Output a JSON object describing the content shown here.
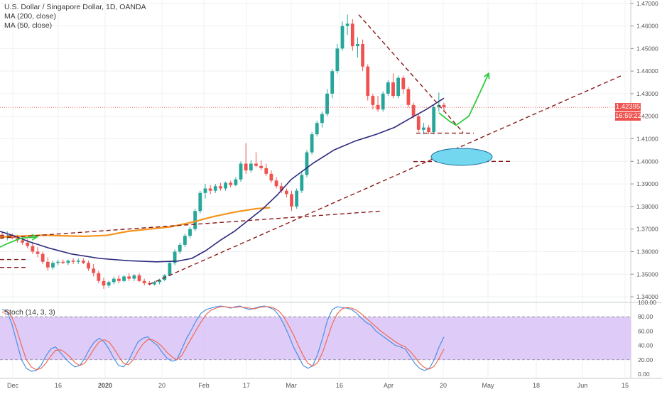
{
  "header": {
    "title": "U.S. Dollar / Singapore Dollar, 1D, OANDA",
    "ma200_label": "MA (200, close)",
    "ma50_label": "MA (50, close)",
    "stoch_label": "Stoch (14, 3, 3)"
  },
  "price_badges": {
    "last_price": "1.42395",
    "countdown": "16:59:22"
  },
  "colors": {
    "up": "#26a69a",
    "down": "#ef5350",
    "ma200": "#f7931a",
    "ma50": "#2c2a7d",
    "trend": "#8b1a1a",
    "stoch_k": "#4a90e2",
    "stoch_d": "#ef6b53",
    "stoch_band": "#d9c2f7",
    "arrow": "#2ecc40",
    "ellipse": "#74d7f0",
    "price_line": "#ef5350",
    "axis": "#555555"
  },
  "chart_data": [
    {
      "type": "candlestick",
      "title": "U.S. Dollar / Singapore Dollar, 1D, OANDA",
      "ylim": [
        1.3375,
        1.4715
      ],
      "y_ticks": [
        "1.34000",
        "1.35000",
        "1.36000",
        "1.37000",
        "1.38000",
        "1.39000",
        "1.40000",
        "1.41000",
        "1.42000",
        "1.43000",
        "1.44000",
        "1.45000",
        "1.46000",
        "1.47000"
      ],
      "x_ticks": [
        "Dec",
        "16",
        "2020",
        "20",
        "Feb",
        "17",
        "Mar",
        "16",
        "Apr",
        "20",
        "May",
        "18",
        "Jun",
        "15"
      ],
      "last_price": 1.42395,
      "candles": [
        [
          1.3675,
          1.3685,
          1.3655,
          1.3665
        ],
        [
          1.3665,
          1.369,
          1.365,
          1.367
        ],
        [
          1.367,
          1.368,
          1.3655,
          1.366
        ],
        [
          1.366,
          1.3675,
          1.364,
          1.365
        ],
        [
          1.365,
          1.3665,
          1.363,
          1.364
        ],
        [
          1.364,
          1.3655,
          1.3615,
          1.3625
        ],
        [
          1.3625,
          1.364,
          1.359,
          1.36
        ],
        [
          1.36,
          1.362,
          1.3575,
          1.359
        ],
        [
          1.359,
          1.36,
          1.3545,
          1.3555
        ],
        [
          1.3555,
          1.3575,
          1.3515,
          1.353
        ],
        [
          1.353,
          1.356,
          1.352,
          1.355
        ],
        [
          1.355,
          1.3565,
          1.354,
          1.3555
        ],
        [
          1.3555,
          1.3565,
          1.3545,
          1.355
        ],
        [
          1.355,
          1.3565,
          1.354,
          1.356
        ],
        [
          1.356,
          1.357,
          1.3545,
          1.3555
        ],
        [
          1.3555,
          1.357,
          1.3545,
          1.356
        ],
        [
          1.356,
          1.357,
          1.3545,
          1.355
        ],
        [
          1.355,
          1.356,
          1.3515,
          1.3525
        ],
        [
          1.3525,
          1.3545,
          1.349,
          1.3505
        ],
        [
          1.3505,
          1.3515,
          1.346,
          1.347
        ],
        [
          1.347,
          1.3485,
          1.3435,
          1.345
        ],
        [
          1.345,
          1.347,
          1.344,
          1.3465
        ],
        [
          1.3465,
          1.349,
          1.3455,
          1.348
        ],
        [
          1.348,
          1.3495,
          1.346,
          1.347
        ],
        [
          1.347,
          1.3495,
          1.3465,
          1.349
        ],
        [
          1.349,
          1.3505,
          1.347,
          1.348
        ],
        [
          1.348,
          1.35,
          1.347,
          1.3495
        ],
        [
          1.3495,
          1.3505,
          1.3465,
          1.347
        ],
        [
          1.347,
          1.348,
          1.345,
          1.346
        ],
        [
          1.346,
          1.347,
          1.345,
          1.3455
        ],
        [
          1.3455,
          1.347,
          1.345,
          1.3465
        ],
        [
          1.3465,
          1.348,
          1.3455,
          1.3475
        ],
        [
          1.3475,
          1.35,
          1.347,
          1.3495
        ],
        [
          1.3495,
          1.356,
          1.349,
          1.355
        ],
        [
          1.355,
          1.361,
          1.354,
          1.36
        ],
        [
          1.36,
          1.364,
          1.359,
          1.363
        ],
        [
          1.363,
          1.368,
          1.362,
          1.367
        ],
        [
          1.367,
          1.371,
          1.366,
          1.37
        ],
        [
          1.37,
          1.379,
          1.369,
          1.378
        ],
        [
          1.378,
          1.387,
          1.377,
          1.386
        ],
        [
          1.386,
          1.39,
          1.3835,
          1.388
        ],
        [
          1.388,
          1.3895,
          1.3855,
          1.387
        ],
        [
          1.387,
          1.39,
          1.386,
          1.389
        ],
        [
          1.389,
          1.3905,
          1.387,
          1.388
        ],
        [
          1.388,
          1.391,
          1.387,
          1.3905
        ],
        [
          1.3905,
          1.3915,
          1.3885,
          1.3895
        ],
        [
          1.3895,
          1.393,
          1.389,
          1.392
        ],
        [
          1.392,
          1.4,
          1.391,
          1.399
        ],
        [
          1.399,
          1.408,
          1.3945,
          1.396
        ],
        [
          1.396,
          1.4005,
          1.395,
          1.399
        ],
        [
          1.399,
          1.404,
          1.3975,
          1.398
        ],
        [
          1.398,
          1.4005,
          1.396,
          1.397
        ],
        [
          1.397,
          1.399,
          1.3935,
          1.3945
        ],
        [
          1.3945,
          1.396,
          1.3905,
          1.3915
        ],
        [
          1.3915,
          1.393,
          1.388,
          1.389
        ],
        [
          1.389,
          1.3905,
          1.386,
          1.387
        ],
        [
          1.387,
          1.388,
          1.384,
          1.3855
        ],
        [
          1.3855,
          1.387,
          1.378,
          1.38
        ],
        [
          1.38,
          1.388,
          1.379,
          1.387
        ],
        [
          1.387,
          1.395,
          1.386,
          1.394
        ],
        [
          1.394,
          1.405,
          1.393,
          1.404
        ],
        [
          1.404,
          1.413,
          1.403,
          1.412
        ],
        [
          1.412,
          1.418,
          1.411,
          1.417
        ],
        [
          1.417,
          1.422,
          1.415,
          1.421
        ],
        [
          1.421,
          1.432,
          1.42,
          1.43
        ],
        [
          1.43,
          1.441,
          1.428,
          1.44
        ],
        [
          1.44,
          1.452,
          1.439,
          1.45
        ],
        [
          1.45,
          1.462,
          1.449,
          1.46
        ],
        [
          1.46,
          1.465,
          1.456,
          1.461
        ],
        [
          1.461,
          1.463,
          1.449,
          1.451
        ],
        [
          1.451,
          1.455,
          1.446,
          1.452
        ],
        [
          1.452,
          1.454,
          1.44,
          1.442
        ],
        [
          1.442,
          1.443,
          1.427,
          1.429
        ],
        [
          1.429,
          1.43,
          1.423,
          1.425
        ],
        [
          1.425,
          1.429,
          1.422,
          1.423
        ],
        [
          1.423,
          1.431,
          1.422,
          1.43
        ],
        [
          1.43,
          1.436,
          1.429,
          1.435
        ],
        [
          1.435,
          1.439,
          1.428,
          1.429
        ],
        [
          1.429,
          1.438,
          1.428,
          1.437
        ],
        [
          1.437,
          1.438,
          1.43,
          1.432
        ],
        [
          1.432,
          1.433,
          1.424,
          1.425
        ],
        [
          1.425,
          1.426,
          1.419,
          1.42
        ],
        [
          1.42,
          1.421,
          1.413,
          1.414
        ],
        [
          1.414,
          1.417,
          1.412,
          1.415
        ],
        [
          1.415,
          1.416,
          1.412,
          1.413
        ],
        [
          1.413,
          1.425,
          1.412,
          1.424
        ],
        [
          1.424,
          1.4305,
          1.422,
          1.425
        ],
        [
          1.425,
          1.426,
          1.422,
          1.424
        ]
      ],
      "series": [
        {
          "name": "MA (200, close)",
          "values": [
            [
              0,
              1.3664
            ],
            [
              20,
              1.3668
            ],
            [
              40,
              1.367
            ],
            [
              60,
              1.3673
            ],
            [
              90,
              1.367
            ],
            [
              120,
              1.3668
            ],
            [
              150,
              1.3672
            ],
            [
              180,
              1.369
            ],
            [
              210,
              1.37
            ],
            [
              240,
              1.371
            ],
            [
              270,
              1.373
            ],
            [
              300,
              1.3755
            ],
            [
              330,
              1.3775
            ],
            [
              360,
              1.379
            ],
            [
              380,
              1.3795
            ]
          ]
        },
        {
          "name": "MA (50, close)",
          "values": [
            [
              0,
              1.369
            ],
            [
              20,
              1.367
            ],
            [
              40,
              1.3645
            ],
            [
              70,
              1.3615
            ],
            [
              100,
              1.359
            ],
            [
              140,
              1.357
            ],
            [
              180,
              1.356
            ],
            [
              220,
              1.3555
            ],
            [
              250,
              1.3558
            ],
            [
              270,
              1.357
            ],
            [
              290,
              1.3605
            ],
            [
              310,
              1.365
            ],
            [
              330,
              1.369
            ],
            [
              350,
              1.374
            ],
            [
              370,
              1.379
            ],
            [
              390,
              1.385
            ],
            [
              410,
              1.392
            ],
            [
              440,
              1.399
            ],
            [
              470,
              1.405
            ],
            [
              500,
              1.409
            ],
            [
              530,
              1.412
            ],
            [
              555,
              1.415
            ],
            [
              580,
              1.4195
            ],
            [
              600,
              1.423
            ],
            [
              625,
              1.428
            ]
          ]
        }
      ]
    },
    {
      "type": "line",
      "title": "Stoch (14, 3, 3)",
      "ylim": [
        -6,
        100
      ],
      "y_ticks": [
        "100.00",
        "80.00",
        "60.00",
        "40.00",
        "20.00",
        "0.00"
      ],
      "band": [
        20,
        80
      ],
      "series": [
        {
          "name": "%K",
          "values": [
            90,
            88,
            70,
            45,
            20,
            8,
            4,
            5,
            12,
            25,
            35,
            38,
            30,
            22,
            15,
            10,
            12,
            22,
            35,
            45,
            50,
            45,
            35,
            22,
            12,
            10,
            18,
            32,
            45,
            50,
            52,
            45,
            40,
            30,
            22,
            18,
            20,
            35,
            50,
            62,
            75,
            85,
            90,
            92,
            94,
            95,
            94,
            92,
            94,
            95,
            92,
            90,
            92,
            94,
            95,
            93,
            90,
            82,
            70,
            55,
            38,
            25,
            12,
            8,
            12,
            28,
            50,
            75,
            90,
            94,
            93,
            92,
            90,
            85,
            78,
            72,
            68,
            60,
            55,
            50,
            45,
            40,
            38,
            35,
            25,
            15,
            8,
            5,
            8,
            20,
            38,
            52
          ]
        },
        {
          "name": "%D",
          "values": [
            86,
            88,
            80,
            62,
            40,
            20,
            10,
            6,
            8,
            15,
            25,
            33,
            34,
            30,
            24,
            16,
            12,
            15,
            25,
            36,
            45,
            48,
            45,
            36,
            25,
            15,
            13,
            20,
            32,
            42,
            48,
            48,
            44,
            38,
            30,
            24,
            20,
            26,
            38,
            50,
            62,
            73,
            83,
            89,
            92,
            94,
            94,
            93,
            93,
            94,
            93,
            92,
            91,
            93,
            94,
            94,
            92,
            88,
            80,
            68,
            55,
            40,
            26,
            15,
            11,
            16,
            30,
            50,
            70,
            84,
            91,
            93,
            92,
            89,
            84,
            78,
            72,
            66,
            60,
            55,
            50,
            45,
            41,
            38,
            32,
            24,
            15,
            9,
            7,
            11,
            22,
            35
          ]
        }
      ]
    }
  ],
  "annotations": {
    "trendlines": [
      {
        "from": [
          0,
          1.366
        ],
        "to": [
          538,
          1.378
        ]
      },
      {
        "from": [
          210,
          1.3455
        ],
        "to": [
          875,
          1.438
        ]
      },
      {
        "from": [
          505,
          1.465
        ],
        "to": [
          652,
          1.4128
        ]
      },
      {
        "from": [
          586,
          1.4125
        ],
        "to": [
          667,
          1.4125
        ]
      },
      {
        "from": [
          582,
          1.3999
        ],
        "to": [
          720,
          1.4
        ]
      },
      {
        "from": [
          0,
          1.367
        ],
        "to": [
          20,
          1.367
        ]
      },
      {
        "from": [
          0,
          1.3565
        ],
        "to": [
          36,
          1.3565
        ]
      },
      {
        "from": [
          0,
          1.353
        ],
        "to": [
          36,
          1.353
        ]
      }
    ],
    "target_ellipse": {
      "center": [
        650,
        1.402
      ]
    },
    "arrows": [
      {
        "path": [
          [
            0,
            1.362
          ],
          [
            10,
            1.3635
          ],
          [
            30,
            1.366
          ],
          [
            52,
            1.3665
          ]
        ]
      },
      {
        "path": [
          [
            618,
            1.4215
          ],
          [
            632,
            1.418
          ],
          [
            642,
            1.416
          ],
          [
            660,
            1.42
          ],
          [
            675,
            1.43
          ],
          [
            688,
            1.439
          ]
        ]
      }
    ]
  }
}
